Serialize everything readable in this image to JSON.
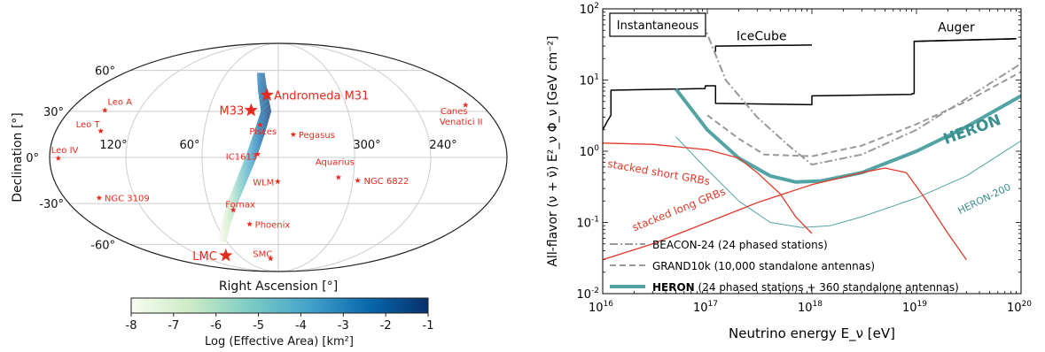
{
  "chart_data": [
    {
      "type": "scatter",
      "projection": "Mollweide (equatorial, right ascension / declination)",
      "xlabel": "Right Ascension [°]",
      "ylabel": "Declination [°]",
      "dec_ticks": [
        {
          "dec": 60,
          "label": "60°"
        },
        {
          "dec": 30,
          "label": "30°"
        },
        {
          "dec": 0,
          "label": "0°"
        },
        {
          "dec": -30,
          "label": "-30°"
        },
        {
          "dec": -60,
          "label": "-60°"
        }
      ],
      "ra_ticks": [
        {
          "ra": 120,
          "label": "120°"
        },
        {
          "ra": 60,
          "label": "60°"
        },
        {
          "ra": 300,
          "label": "300°"
        },
        {
          "ra": 240,
          "label": "240°"
        }
      ],
      "grid": true,
      "marker_color": "#e8291c",
      "points": [
        {
          "name": "Andromeda M31",
          "lon": 10.7,
          "dec": 41.3,
          "marker": "big-star"
        },
        {
          "name": "M33",
          "lon": 23.5,
          "dec": 30.7,
          "marker": "big-star"
        },
        {
          "name": "LMC",
          "lon": 80.9,
          "dec": -69.8,
          "marker": "big-star"
        },
        {
          "name": "Pisces",
          "lon": 15.0,
          "dec": 21.0,
          "marker": "star"
        },
        {
          "name": "Pegasus",
          "lon": -12.0,
          "dec": 14.7,
          "marker": "star"
        },
        {
          "name": "IC1613",
          "lon": 16.2,
          "dec": 2.1,
          "marker": "star"
        },
        {
          "name": "WLM",
          "lon": 0.5,
          "dec": -15.5,
          "marker": "star"
        },
        {
          "name": "Fornax",
          "lon": 39.9,
          "dec": -34.4,
          "marker": "star"
        },
        {
          "name": "Phoenix",
          "lon": 27.8,
          "dec": -44.4,
          "marker": "star"
        },
        {
          "name": "SMC",
          "lon": 13.2,
          "dec": -72.8,
          "marker": "star"
        },
        {
          "name": "Aquarius",
          "lon": -48.1,
          "dec": -12.8,
          "marker": "star"
        },
        {
          "name": "NGC 6822",
          "lon": -63.8,
          "dec": -14.8,
          "marker": "star"
        },
        {
          "name": "Leo A",
          "lon": 149.9,
          "dec": 30.7,
          "marker": "star"
        },
        {
          "name": "Leo T",
          "lon": 143.7,
          "dec": 17.0,
          "marker": "star"
        },
        {
          "name": "Leo IV",
          "lon": 173.2,
          "dec": -0.5,
          "marker": "star"
        },
        {
          "name": "NGC 3109",
          "lon": 150.8,
          "dec": -26.2,
          "marker": "star"
        },
        {
          "name": "Canes Venatici II",
          "lon": -165.9,
          "dec": 34.3,
          "marker": "star"
        }
      ],
      "colorbar": {
        "label": "Log (Effective Area) [km²]",
        "min": -8,
        "max": -1,
        "ticks": [
          "-8",
          "-7",
          "-6",
          "-5",
          "-4",
          "-3",
          "-2",
          "-1"
        ],
        "colors": [
          "#f7fcf0",
          "#ccebc5",
          "#7bccc4",
          "#43a2ca",
          "#0868ac",
          "#08306b"
        ]
      },
      "band": {
        "description": "sky region with nonzero effective area (instantaneous field of view)",
        "edge": [
          [
            25,
            58
          ],
          [
            20,
            45
          ],
          [
            15,
            30
          ],
          [
            20,
            15
          ],
          [
            26,
            0
          ],
          [
            34,
            -15
          ],
          [
            44,
            -30
          ],
          [
            56,
            -45
          ],
          [
            70,
            -58
          ]
        ],
        "width_deg": 9
      }
    },
    {
      "type": "line",
      "xscale": "log",
      "yscale": "log",
      "xlim": [
        1e+16,
        1e+20
      ],
      "ylim": [
        0.01,
        100
      ],
      "xlabel": "Neutrino energy E_ν [eV]",
      "ylabel": "All-flavor (ν + ν̄) E²_ν Φ_ν [GeV cm⁻²]",
      "x_ticks": [
        {
          "v": 16,
          "label": "10^16"
        },
        {
          "v": 17,
          "label": "10^17"
        },
        {
          "v": 18,
          "label": "10^18"
        },
        {
          "v": 19,
          "label": "10^19"
        },
        {
          "v": 20,
          "label": "10^20"
        }
      ],
      "y_ticks": [
        {
          "v": -2,
          "label": "10^-2"
        },
        {
          "v": -1,
          "label": "10^-1"
        },
        {
          "v": 0,
          "label": "10^0"
        },
        {
          "v": 1,
          "label": "10^1"
        },
        {
          "v": 2,
          "label": "10^2"
        }
      ],
      "boxed_label": "Instantaneous",
      "series": [
        {
          "name": "IceCube",
          "color": "#000000",
          "width": 1.5,
          "dash": "solid",
          "x": [
            1.2e+17,
            1.2e+17,
            1e+18
          ],
          "y": [
            25,
            30,
            31
          ]
        },
        {
          "name": "",
          "color": "#000000",
          "width": 1.5,
          "dash": "solid",
          "x": [
            1e+16,
            1.1e+16,
            1.2e+16,
            1.2e+16,
            9.5e+16,
            9.6e+16,
            1.2e+17,
            1.2e+17,
            1e+18,
            1e+18,
            9e+18,
            9e+18,
            9.5e+18,
            9.5e+18,
            9e+19
          ],
          "y": [
            2.0,
            2.6,
            3.2,
            7.2,
            7.6,
            8.3,
            8.3,
            4.7,
            4.5,
            6.0,
            6.3,
            6.4,
            6.5,
            35,
            38
          ]
        },
        {
          "name": "Auger",
          "color": "#000000",
          "width": 1.5,
          "dash": "solid",
          "x": [
            9.5e+18,
            9e+19
          ],
          "y": [
            35,
            38
          ]
        },
        {
          "name": "BEACON-24 (24 phased stations)",
          "color": "#999999",
          "width": 2,
          "dash": "dashdot",
          "x": [
            8e+16,
            1.5e+17,
            3e+17,
            6e+17,
            1e+18,
            3e+18,
            1e+19,
            3e+19,
            1e+20
          ],
          "y": [
            100,
            10,
            3,
            1.2,
            0.65,
            0.9,
            2.0,
            5.5,
            17
          ]
        },
        {
          "name": "GRAND10k (10,000 standalone antennas)",
          "color": "#999999",
          "width": 2,
          "dash": "dashed",
          "x": [
            1e+17,
            2e+17,
            3.5e+17,
            1e+18,
            3e+18,
            1e+19,
            3e+19,
            1e+20
          ],
          "y": [
            3.2,
            1.5,
            0.9,
            0.85,
            1.2,
            2.4,
            5.0,
            13
          ]
        },
        {
          "name": "HERON (24 phased stations + 360 standalone antennas)",
          "color": "#52a3a3",
          "width": 4,
          "dash": "solid",
          "x": [
            5e+16,
            1e+17,
            2e+17,
            4e+17,
            7e+17,
            1.2e+18,
            3e+18,
            1e+19,
            3e+19,
            1e+20
          ],
          "y": [
            7.5,
            2.0,
            0.8,
            0.45,
            0.37,
            0.38,
            0.5,
            1.0,
            2.2,
            6.0
          ]
        },
        {
          "name": "HERON-200",
          "color": "#52a3a3",
          "width": 1,
          "dash": "solid",
          "x": [
            5e+16,
            1e+17,
            2e+17,
            4e+17,
            8e+17,
            1.5e+18,
            3e+18,
            1e+19,
            3e+19,
            1e+20
          ],
          "y": [
            1.6,
            0.55,
            0.2,
            0.1,
            0.085,
            0.09,
            0.12,
            0.22,
            0.45,
            1.4
          ]
        },
        {
          "name": "stacked short GRBs",
          "color": "#e03a2a",
          "width": 1.3,
          "dash": "solid",
          "x": [
            1e+16,
            3e+16,
            1e+17,
            2e+17,
            3e+17,
            5e+17,
            7e+17,
            1e+18
          ],
          "y": [
            1.3,
            1.25,
            1.05,
            0.8,
            0.5,
            0.25,
            0.12,
            0.07
          ]
        },
        {
          "name": "stacked long GRBs",
          "color": "#e03a2a",
          "width": 1.3,
          "dash": "solid",
          "x": [
            1e+16,
            3e+16,
            1e+17,
            3e+17,
            1e+18,
            3e+18,
            5e+18,
            8e+18,
            1.2e+19,
            2e+19,
            3e+19
          ],
          "y": [
            0.03,
            0.05,
            0.1,
            0.19,
            0.34,
            0.5,
            0.58,
            0.5,
            0.22,
            0.07,
            0.03
          ]
        }
      ],
      "annotations": [
        {
          "text": "IceCube",
          "x": 1.9e+17,
          "y": 36,
          "color": "#000000",
          "rotate": 0,
          "size": 14
        },
        {
          "text": "Auger",
          "x": 1.6e+19,
          "y": 48,
          "color": "#000000",
          "rotate": 0,
          "size": 14
        },
        {
          "text": "HERON",
          "x": 1.9e+19,
          "y": 1.25,
          "color": "#3a8f8f",
          "rotate": -20,
          "size": 17,
          "bold": true
        },
        {
          "text": "HERON-200",
          "x": 2.6e+19,
          "y": 0.13,
          "color": "#3a8f8f",
          "rotate": -26,
          "size": 11
        },
        {
          "text": "stacked short GRBs",
          "x": 1.1e+16,
          "y": 0.6,
          "color": "#e03a2a",
          "rotate": 10,
          "size": 12
        },
        {
          "text": "stacked long GRBs",
          "x": 2e+16,
          "y": 0.075,
          "color": "#e03a2a",
          "rotate": -22,
          "size": 12
        }
      ],
      "legend_position": "bottom-left"
    }
  ]
}
